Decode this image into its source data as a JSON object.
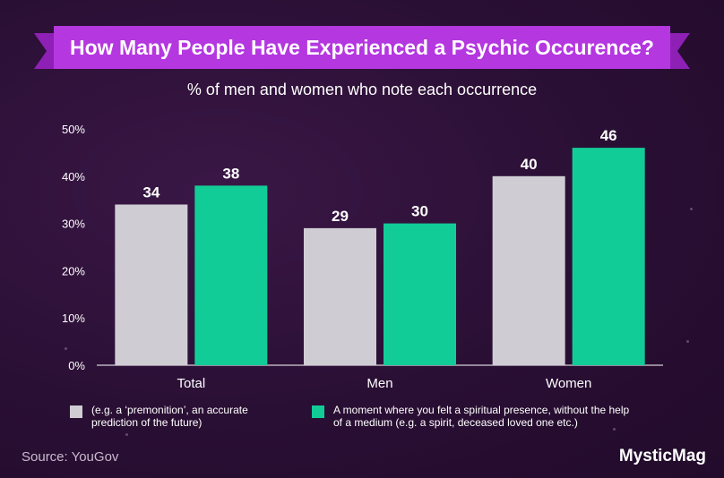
{
  "header": {
    "title": "How Many People Have Experienced a Psychic Occurence?",
    "subtitle": "% of men and women who note each occurrence"
  },
  "chart_data": {
    "type": "bar",
    "categories": [
      "Total",
      "Men",
      "Women"
    ],
    "series": [
      {
        "name": "(e.g. a ‘premonition’, an accurate prediction of the future)",
        "values": [
          34,
          29,
          40
        ],
        "color": "#d0ccd4"
      },
      {
        "name": "A moment where you felt a spiritual presence, without the help of a medium (e.g. a spirit, deceased loved one etc.)",
        "values": [
          38,
          30,
          46
        ],
        "color": "#12cc97"
      }
    ],
    "ylim": [
      0,
      50
    ],
    "yticks": [
      "0%",
      "10%",
      "20%",
      "30%",
      "40%",
      "50%"
    ],
    "title": "How Many People Have Experienced a Psychic Occurence?",
    "subtitle": "% of men and women who note each occurrence",
    "legend": "bottom",
    "grid": false
  },
  "legend": {
    "items": [
      {
        "label_line1": "(e.g. a ‘premonition’, an accurate",
        "label_line2": "prediction of the future)",
        "color": "#d0ccd4"
      },
      {
        "label_line1": "A moment where you felt a spiritual presence, without the help",
        "label_line2": "of a medium (e.g. a spirit, deceased loved one etc.)",
        "color": "#12cc97"
      }
    ]
  },
  "footer": {
    "source": "Source: YouGov",
    "brand": "MysticMag"
  },
  "colors": {
    "background": "#2a0f34",
    "banner": "#b437e0",
    "axis": "#ffffff"
  }
}
